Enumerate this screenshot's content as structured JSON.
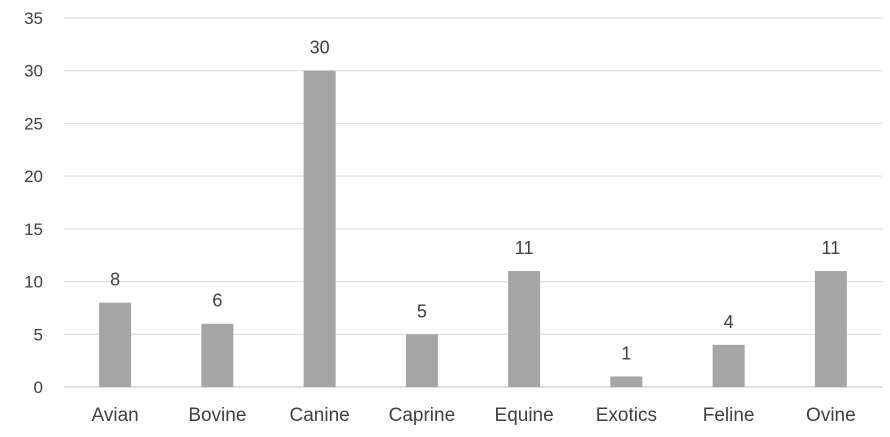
{
  "chart_data": {
    "type": "bar",
    "title": "",
    "xlabel": "",
    "ylabel": "",
    "categories": [
      "Avian",
      "Bovine",
      "Canine",
      "Caprine",
      "Equine",
      "Exotics",
      "Feline",
      "Ovine"
    ],
    "values": [
      8,
      6,
      30,
      5,
      11,
      1,
      4,
      11
    ],
    "ylim": [
      0,
      35
    ],
    "yticks": [
      0,
      5,
      10,
      15,
      20,
      25,
      30,
      35
    ],
    "grid": true,
    "legend": "none",
    "data_labels": true,
    "colors": {
      "bar": "#a5a5a5",
      "grid": "#d9d9d9",
      "text": "#404040"
    }
  }
}
